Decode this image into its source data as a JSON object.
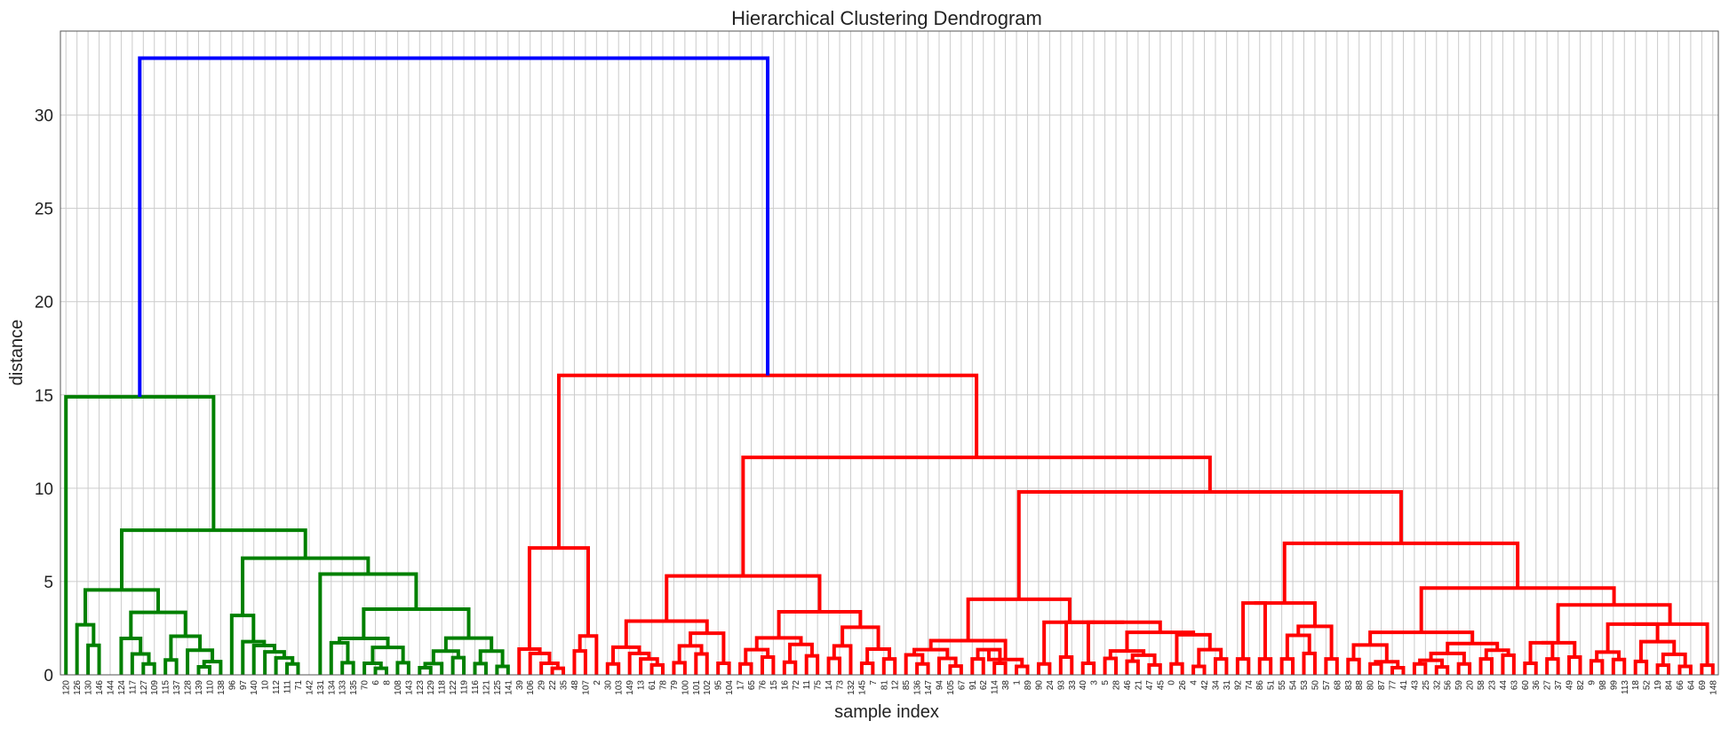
{
  "chart_data": {
    "type": "dendrogram",
    "title": "Hierarchical Clustering Dendrogram",
    "xlabel": "sample index",
    "ylabel": "distance",
    "ylim": [
      0,
      34.5
    ],
    "yticks": [
      0,
      5,
      10,
      15,
      20,
      25,
      30
    ],
    "grid": true,
    "colors": {
      "cluster_1": "#008000",
      "cluster_2": "#ff0000",
      "root": "#0000ff",
      "grid": "#cccccc"
    },
    "leaf_order": [
      "120",
      "126",
      "130",
      "146",
      "144",
      "124",
      "117",
      "127",
      "109",
      "115",
      "137",
      "128",
      "139",
      "110",
      "138",
      "96",
      "97",
      "140",
      "10",
      "112",
      "111",
      "71",
      "142",
      "131",
      "134",
      "133",
      "135",
      "70",
      "6",
      "8",
      "108",
      "143",
      "123",
      "129",
      "118",
      "122",
      "119",
      "116",
      "121",
      "125",
      "141",
      "39",
      "106",
      "29",
      "22",
      "35",
      "48",
      "107",
      "2",
      "30",
      "103",
      "149",
      "13",
      "61",
      "78",
      "79",
      "100",
      "101",
      "102",
      "95",
      "104",
      "17",
      "65",
      "76",
      "15",
      "16",
      "72",
      "11",
      "75",
      "14",
      "73",
      "132",
      "145",
      "7",
      "81",
      "12",
      "85",
      "136",
      "147",
      "94",
      "105",
      "67",
      "91",
      "62",
      "114",
      "38",
      "1",
      "89",
      "90",
      "24",
      "93",
      "33",
      "40",
      "3",
      "5",
      "28",
      "46",
      "21",
      "47",
      "45",
      "0",
      "26",
      "4",
      "42",
      "34",
      "31",
      "92",
      "74",
      "86",
      "51",
      "55",
      "54",
      "53",
      "50",
      "57",
      "68",
      "83",
      "88",
      "80",
      "87",
      "77",
      "41",
      "43",
      "25",
      "32",
      "56",
      "59",
      "20",
      "58",
      "23",
      "44",
      "63",
      "60",
      "36",
      "27",
      "37",
      "49",
      "82",
      "9",
      "98",
      "99",
      "113",
      "18",
      "52",
      "19",
      "84",
      "66",
      "64",
      "69",
      "148"
    ],
    "merges": [
      {
        "children": [
          2,
          3
        ],
        "height": 1.58
      },
      {
        "children": [
          1,
          "L0"
        ],
        "height": 2.68
      },
      {
        "children": [
          8,
          9
        ],
        "height": 0.58
      },
      {
        "children": [
          7,
          "L1"
        ],
        "height": 1.12
      },
      {
        "children": [
          6,
          "L2"
        ],
        "height": 1.95
      },
      {
        "children": [
          10,
          11
        ],
        "height": 0.8
      },
      {
        "children": [
          9,
          "L3"
        ],
        "height": 1.0
      },
      {
        "children": [
          12,
          13
        ],
        "height": 0.43
      },
      {
        "children": [
          14,
          15
        ],
        "height": 0.71
      },
      {
        "children": [
          "L5",
          "L6"
        ],
        "height": 1.32
      },
      {
        "children": [
          "L4",
          "L7"
        ],
        "height": 2.07
      },
      {
        "children": [
          "L2",
          "L8"
        ],
        "height": 3.35
      },
      {
        "children": [
          "L1",
          "L9"
        ],
        "height": 4.55
      },
      {
        "children": [
          20,
          21
        ],
        "height": 0.58
      },
      {
        "children": [
          19,
          "L10"
        ],
        "height": 0.91
      },
      {
        "children": [
          18,
          "L11"
        ],
        "height": 1.23
      },
      {
        "children": [
          17,
          "L12"
        ],
        "height": 1.57
      },
      {
        "children": [
          16,
          "L13"
        ],
        "height": 1.78
      },
      {
        "children": [
          22,
          "L14"
        ],
        "height": 3.18
      },
      {
        "children": [
          27,
          28
        ],
        "height": 0.3
      },
      {
        "children": [
          26,
          "L15"
        ],
        "height": 0.65
      },
      {
        "children": [
          25,
          "L16"
        ],
        "height": 1.42
      },
      {
        "children": [
          24,
          "L17"
        ],
        "height": 1.72
      },
      {
        "children": [
          30,
          31
        ],
        "height": 0.35
      },
      {
        "children": [
          29,
          "L18"
        ],
        "height": 0.62
      },
      {
        "children": [
          32,
          33
        ],
        "height": 0.65
      },
      {
        "children": [
          "L19",
          "L20"
        ],
        "height": 1.47
      },
      {
        "children": [
          "L21",
          "L22"
        ],
        "height": 1.95
      },
      {
        "children": [
          36,
          37
        ],
        "height": 0.38
      },
      {
        "children": [
          38,
          39
        ],
        "height": 0.6
      },
      {
        "children": [
          35,
          "L23"
        ],
        "height": 0.92
      },
      {
        "children": [
          "L24",
          "L25"
        ],
        "height": 1.27
      },
      {
        "children": [
          34,
          "L26"
        ],
        "height": 1.97
      },
      {
        "children": [
          "L27",
          "L28"
        ],
        "height": 3.52
      },
      {
        "children": [
          "L29",
          "L30"
        ],
        "height": 5.4
      },
      {
        "children": [
          23,
          "L31"
        ],
        "height": 6.25
      },
      {
        "children": [
          "L32",
          "L33"
        ],
        "height": 7.75
      },
      {
        "children": [
          0,
          "L34"
        ],
        "height": 14.9
      },
      {
        "children": [
          44,
          45
        ],
        "height": 0.35
      },
      {
        "children": [
          43,
          "L36"
        ],
        "height": 0.62
      },
      {
        "children": [
          42,
          "L37"
        ],
        "height": 1.15
      },
      {
        "children": [
          41,
          "L38"
        ],
        "height": 1.38
      },
      {
        "children": [
          40,
          "L39"
        ],
        "height": 0.85
      },
      {
        "children": [
          47,
          48
        ],
        "height": 1.28
      },
      {
        "children": [
          46,
          "L41"
        ],
        "height": 2.08
      },
      {
        "children": [
          "L40",
          "L42"
        ],
        "height": 6.8
      },
      {
        "children": [
          50,
          51
        ],
        "height": 0.58
      },
      {
        "children": [
          54,
          55
        ],
        "height": 0.53
      },
      {
        "children": [
          53,
          "L45"
        ],
        "height": 0.85
      },
      {
        "children": [
          52,
          "L46"
        ],
        "height": 1.15
      },
      {
        "children": [
          "L44",
          "L47"
        ],
        "height": 1.48
      },
      {
        "children": [
          56,
          57
        ],
        "height": 0.65
      },
      {
        "children": [
          58,
          59
        ],
        "height": 1.12
      },
      {
        "children": [
          "L49",
          "L50"
        ],
        "height": 1.55
      },
      {
        "children": [
          60,
          61
        ],
        "height": 0.62
      },
      {
        "children": [
          "L52",
          "L53"
        ],
        "height": 2.23
      },
      {
        "children": [
          "L51",
          "L54"
        ],
        "height": 2.88
      },
      {
        "children": [
          49,
          "L55"
        ],
        "height": 3.18
      },
      {
        "children": [
          62,
          "L56"
        ],
        "height": 0.58
      },
      {
        "children": [
          63,
          64
        ],
        "height": 0.95
      },
      {
        "children": [
          65,
          66
        ],
        "height": 1.35
      },
      {
        "children": [
          67,
          68
        ],
        "height": 0.68
      },
      {
        "children": [
          "L58",
          "L59"
        ],
        "height": 1.47
      },
      {
        "children": [
          69,
          70
        ],
        "height": 1.63
      },
      {
        "children": [
          "L60",
          "L61"
        ],
        "height": 1.98
      },
      {
        "children": [
          71,
          72
        ],
        "height": 1.02
      },
      {
        "children": [
          "L62",
          "L63"
        ],
        "height": 2.48
      },
      {
        "children": [
          "L57",
          "L64"
        ],
        "height": 3.38
      },
      {
        "children": [
          73,
          74
        ],
        "height": 0.88
      },
      {
        "children": [
          75,
          76
        ],
        "height": 0.62
      },
      {
        "children": [
          "L66",
          "L67"
        ],
        "height": 1.38
      },
      {
        "children": [
          77,
          78
        ],
        "height": 1.55
      },
      {
        "children": [
          "L68",
          "L69"
        ],
        "height": 1.88
      },
      {
        "children": [
          "L65",
          "L70"
        ],
        "height": 2.55
      },
      {
        "children": [
          80,
          81
        ],
        "height": 0.58
      },
      {
        "children": [
          79,
          "L72"
        ],
        "height": 1.07
      },
      {
        "children": [
          83,
          84
        ],
        "height": 0.47
      },
      {
        "children": [
          82,
          "L74"
        ],
        "height": 0.88
      },
      {
        "children": [
          "L73",
          "L75"
        ],
        "height": 1.35
      },
      {
        "children": [
          85,
          86
        ],
        "height": 0.85
      },
      {
        "children": [
          87,
          88
        ],
        "height": 0.62
      },
      {
        "children": [
          "L77",
          "L78"
        ],
        "height": 1.35
      },
      {
        "children": [
          89,
          90
        ],
        "height": 0.45
      },
      {
        "children": [
          "L79",
          "L80"
        ],
        "height": 0.82
      },
      {
        "children": [
          "L76",
          "L81"
        ],
        "height": 1.83
      },
      {
        "children": [
          91,
          92
        ],
        "height": 0.58
      },
      {
        "children": [
          93,
          94
        ],
        "height": 0.95
      },
      {
        "children": [
          95,
          96
        ],
        "height": 0.62
      },
      {
        "children": [
          97,
          98
        ],
        "height": 0.88
      },
      {
        "children": [
          99,
          100
        ],
        "height": 0.73
      },
      {
        "children": [
          101,
          102
        ],
        "height": 0.53
      },
      {
        "children": [
          "L86",
          "L87"
        ],
        "height": 1.05
      },
      {
        "children": [
          "L85",
          "L88"
        ],
        "height": 1.28
      },
      {
        "children": [
          103,
          104
        ],
        "height": 0.58
      },
      {
        "children": [
          105,
          106
        ],
        "height": 0.45
      },
      {
        "children": [
          107,
          108
        ],
        "height": 0.85
      },
      {
        "children": [
          "L90",
          "L91"
        ],
        "height": 1.35
      },
      {
        "children": [
          "L89",
          "L92"
        ],
        "height": 2.15
      },
      {
        "children": [
          "L93",
          "L94"
        ],
        "height": 2.28
      },
      {
        "children": [
          "L84",
          "L95"
        ],
        "height": 2.82
      },
      {
        "children": [
          "L83",
          "L96"
        ],
        "height": 4.05
      },
      {
        "children": [
          109,
          110
        ],
        "height": 0.85
      },
      {
        "children": [
          111,
          112
        ],
        "height": 0.85
      },
      {
        "children": [
          113,
          114
        ],
        "height": 2.6
      },
      {
        "children": [
          115,
          116
        ],
        "height": 1.15
      },
      {
        "children": [
          117,
          118
        ],
        "height": 0.85
      },
      {
        "children": [
          "L100",
          "L101"
        ],
        "height": 2.12
      },
      {
        "children": [
          "L99",
          "L102"
        ],
        "height": 3.85
      },
      {
        "children": [
          119,
          120
        ],
        "height": 0.82
      },
      {
        "children": [
          121,
          122
        ],
        "height": 0.58
      },
      {
        "children": [
          123,
          124
        ],
        "height": 0.38
      },
      {
        "children": [
          "L104",
          "L105"
        ],
        "height": 0.7
      },
      {
        "children": [
          "L103",
          "L106"
        ],
        "height": 1.6
      },
      {
        "children": [
          125,
          126
        ],
        "height": 0.58
      },
      {
        "children": [
          127,
          128
        ],
        "height": 0.42
      },
      {
        "children": [
          "L108",
          "L109"
        ],
        "height": 0.78
      },
      {
        "children": [
          129,
          130
        ],
        "height": 0.58
      },
      {
        "children": [
          "L110",
          "L111"
        ],
        "height": 1.15
      },
      {
        "children": [
          131,
          132
        ],
        "height": 0.85
      },
      {
        "children": [
          133,
          134
        ],
        "height": 1.05
      },
      {
        "children": [
          "L113",
          "L114"
        ],
        "height": 1.32
      },
      {
        "children": [
          "L112",
          "L115"
        ],
        "height": 1.68
      },
      {
        "children": [
          "L116",
          "L117"
        ],
        "height": 2.28
      },
      {
        "children": [
          135,
          136
        ],
        "height": 0.62
      },
      {
        "children": [
          137,
          138
        ],
        "height": 0.85
      },
      {
        "children": [
          139,
          140
        ],
        "height": 0.95
      },
      {
        "children": [
          "L119",
          "L120"
        ],
        "height": 1.72
      },
      {
        "children": [
          141,
          142
        ],
        "height": 0.75
      },
      {
        "children": [
          143,
          144
        ],
        "height": 0.82
      },
      {
        "children": [
          "L122",
          "L123"
        ],
        "height": 1.22
      },
      {
        "children": [
          145,
          146
        ],
        "height": 0.72
      },
      {
        "children": [
          147,
          148
        ],
        "height": 0.52
      },
      {
        "children": [
          "L125",
          "L126"
        ],
        "height": 1.1
      },
      {
        "children": [
          "L124",
          "L127"
        ],
        "height": 1.78
      },
      {
        "children": [
          "L121",
          "L128"
        ],
        "height": 2.72
      },
      {
        "children": [
          "L122b",
          "L129"
        ],
        "height": 3.75
      },
      {
        "children": [
          "L118",
          "L130"
        ],
        "height": 4.65
      },
      {
        "children": [
          "L107",
          "L131"
        ],
        "height": 7.05
      },
      {
        "children": [
          "L98",
          "L132"
        ],
        "height": 9.8
      },
      {
        "children": [
          "L82",
          "L133"
        ],
        "height": 11.65
      },
      {
        "children": [
          "L43",
          "L134"
        ],
        "height": 16.05
      },
      {
        "children": [
          "L35",
          "L135"
        ],
        "height": 33.05
      }
    ]
  }
}
